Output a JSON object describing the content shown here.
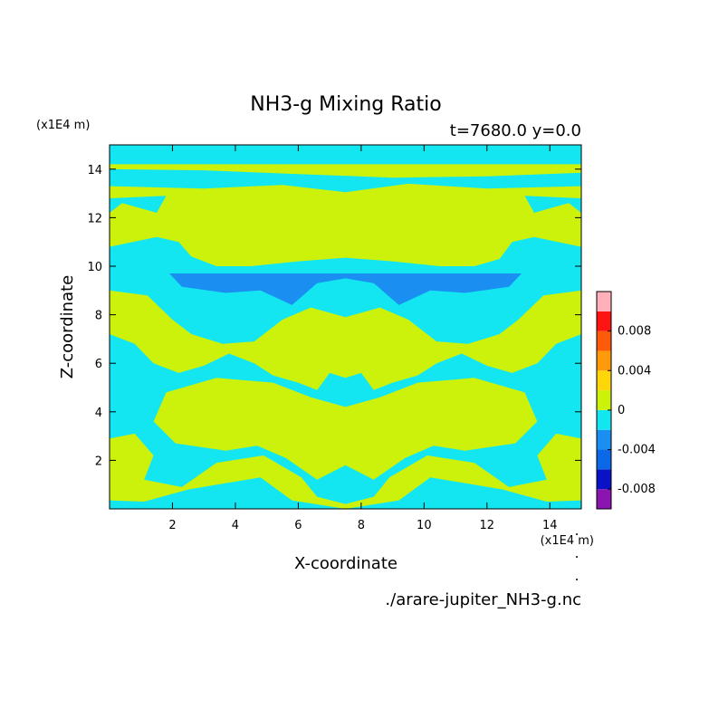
{
  "chart_data": {
    "type": "heatmap",
    "title": "NH3-g Mixing Ratio",
    "subtitle": "t=7680.0 y=0.0",
    "xlabel": "X-coordinate",
    "ylabel": "Z-coordinate",
    "x_unit": "(x1E4 m)",
    "y_unit": "(x1E4 m)",
    "xlim": [
      0,
      15
    ],
    "ylim": [
      0,
      15
    ],
    "x_ticks": [
      2,
      4,
      6,
      8,
      10,
      12,
      14
    ],
    "y_ticks": [
      2,
      4,
      6,
      8,
      10,
      12,
      14
    ],
    "x_tick_labels": [
      "2",
      "4",
      "6",
      "8",
      "10",
      "12",
      "14"
    ],
    "y_tick_labels": [
      "2",
      "4",
      "6",
      "8",
      "10",
      "12",
      "14"
    ],
    "source_file": "./arare-jupiter_NH3-g.nc",
    "colorbar": {
      "tick_labels": [
        "0.008",
        "0.004",
        "0",
        "-0.004",
        "-0.008"
      ],
      "tick_values": [
        0.008,
        0.004,
        0,
        -0.004,
        -0.008
      ],
      "levels": [
        {
          "min": -0.01,
          "max": -0.008,
          "color": "#8a15b0"
        },
        {
          "min": -0.008,
          "max": -0.006,
          "color": "#0a12c8"
        },
        {
          "min": -0.006,
          "max": -0.004,
          "color": "#0b68e6"
        },
        {
          "min": -0.004,
          "max": -0.002,
          "color": "#1b8ef2"
        },
        {
          "min": -0.002,
          "max": 0.0,
          "color": "#13e6f0"
        },
        {
          "min": 0.0,
          "max": 0.002,
          "color": "#ccf20c"
        },
        {
          "min": 0.002,
          "max": 0.004,
          "color": "#ffd60a"
        },
        {
          "min": 0.004,
          "max": 0.006,
          "color": "#ff9a0a"
        },
        {
          "min": 0.006,
          "max": 0.008,
          "color": "#ff5a0a"
        },
        {
          "min": 0.008,
          "max": 0.01,
          "color": "#ff1414"
        },
        {
          "min": 0.01,
          "max": 0.012,
          "color": "#ffb0b8"
        }
      ]
    },
    "field_regions": [
      {
        "level": -0.001,
        "polygon": [
          [
            0,
            0
          ],
          [
            15,
            0
          ],
          [
            15,
            15
          ],
          [
            0,
            15
          ]
        ]
      },
      {
        "level": 0.001,
        "polygon": [
          [
            0,
            14.2
          ],
          [
            15,
            14.2
          ],
          [
            15,
            13.85
          ],
          [
            12,
            13.7
          ],
          [
            9,
            13.65
          ],
          [
            6,
            13.8
          ],
          [
            3,
            13.95
          ],
          [
            0,
            14.0
          ]
        ]
      },
      {
        "level": 0.001,
        "polygon": [
          [
            0,
            13.3
          ],
          [
            3,
            13.2
          ],
          [
            5.5,
            13.35
          ],
          [
            7.5,
            13.05
          ],
          [
            9.5,
            13.4
          ],
          [
            12,
            13.2
          ],
          [
            15,
            13.3
          ],
          [
            15,
            12.8
          ],
          [
            13.2,
            12.9
          ],
          [
            13.5,
            12.2
          ],
          [
            14.6,
            12.6
          ],
          [
            15,
            12.2
          ],
          [
            15,
            10.8
          ],
          [
            13.5,
            11.2
          ],
          [
            12.8,
            11.0
          ],
          [
            12.4,
            10.3
          ],
          [
            11.6,
            10.0
          ],
          [
            10.5,
            10.0
          ],
          [
            9,
            10.2
          ],
          [
            7.5,
            10.35
          ],
          [
            6,
            10.2
          ],
          [
            4.5,
            10.0
          ],
          [
            3.4,
            10.0
          ],
          [
            2.6,
            10.4
          ],
          [
            2.2,
            11.0
          ],
          [
            1.5,
            11.2
          ],
          [
            0,
            10.8
          ],
          [
            0,
            12.2
          ],
          [
            0.4,
            12.6
          ],
          [
            1.5,
            12.2
          ],
          [
            1.8,
            12.9
          ],
          [
            0,
            12.8
          ]
        ]
      },
      {
        "level": -0.003,
        "polygon": [
          [
            1.9,
            9.7
          ],
          [
            13.1,
            9.7
          ],
          [
            12.7,
            9.15
          ],
          [
            11.3,
            8.9
          ],
          [
            10.2,
            9.0
          ],
          [
            9.2,
            8.4
          ],
          [
            8.4,
            9.3
          ],
          [
            7.5,
            9.5
          ],
          [
            6.6,
            9.3
          ],
          [
            5.8,
            8.4
          ],
          [
            4.8,
            9.0
          ],
          [
            3.7,
            8.9
          ],
          [
            2.3,
            9.15
          ]
        ]
      },
      {
        "level": 0.001,
        "polygon": [
          [
            0,
            9.0
          ],
          [
            1.2,
            8.8
          ],
          [
            2.0,
            7.8
          ],
          [
            2.6,
            7.2
          ],
          [
            3.6,
            6.8
          ],
          [
            4.6,
            6.9
          ],
          [
            5.5,
            7.8
          ],
          [
            6.4,
            8.3
          ],
          [
            7.5,
            7.9
          ],
          [
            8.6,
            8.3
          ],
          [
            9.5,
            7.8
          ],
          [
            10.4,
            6.9
          ],
          [
            11.4,
            6.8
          ],
          [
            12.4,
            7.2
          ],
          [
            13.0,
            7.8
          ],
          [
            13.8,
            8.8
          ],
          [
            15,
            9.0
          ],
          [
            15,
            7.2
          ],
          [
            14.2,
            6.8
          ],
          [
            13.6,
            6.0
          ],
          [
            12.8,
            5.6
          ],
          [
            12.0,
            5.9
          ],
          [
            11.2,
            6.4
          ],
          [
            10.4,
            6.0
          ],
          [
            9.8,
            5.5
          ],
          [
            9.0,
            5.2
          ],
          [
            8.4,
            4.9
          ],
          [
            8.0,
            5.6
          ],
          [
            7.5,
            5.4
          ],
          [
            7.0,
            5.6
          ],
          [
            6.6,
            4.9
          ],
          [
            6.0,
            5.2
          ],
          [
            5.2,
            5.5
          ],
          [
            4.6,
            6.0
          ],
          [
            3.8,
            6.4
          ],
          [
            3.0,
            5.9
          ],
          [
            2.2,
            5.6
          ],
          [
            1.4,
            6.0
          ],
          [
            0.8,
            6.8
          ],
          [
            0,
            7.2
          ]
        ]
      },
      {
        "level": 0.001,
        "polygon": [
          [
            1.8,
            4.8
          ],
          [
            3.4,
            5.4
          ],
          [
            5.2,
            5.2
          ],
          [
            6.4,
            4.6
          ],
          [
            7.5,
            4.2
          ],
          [
            8.6,
            4.6
          ],
          [
            9.8,
            5.2
          ],
          [
            11.6,
            5.4
          ],
          [
            13.2,
            4.8
          ],
          [
            13.6,
            3.6
          ],
          [
            12.9,
            2.7
          ],
          [
            11.3,
            2.4
          ],
          [
            10.3,
            2.6
          ],
          [
            9.4,
            2.1
          ],
          [
            8.4,
            1.2
          ],
          [
            7.5,
            1.8
          ],
          [
            6.6,
            1.2
          ],
          [
            5.6,
            2.1
          ],
          [
            4.7,
            2.6
          ],
          [
            3.7,
            2.4
          ],
          [
            2.1,
            2.7
          ],
          [
            1.4,
            3.6
          ]
        ]
      },
      {
        "level": 0.001,
        "polygon": [
          [
            0,
            2.9
          ],
          [
            0.8,
            3.1
          ],
          [
            1.4,
            2.2
          ],
          [
            1.1,
            1.2
          ],
          [
            2.3,
            0.9
          ],
          [
            3.4,
            1.9
          ],
          [
            4.9,
            2.2
          ],
          [
            6.1,
            1.3
          ],
          [
            6.6,
            0.5
          ],
          [
            7.5,
            0.2
          ],
          [
            8.4,
            0.5
          ],
          [
            8.9,
            1.3
          ],
          [
            10.1,
            2.2
          ],
          [
            11.6,
            1.9
          ],
          [
            12.7,
            0.9
          ],
          [
            13.9,
            1.2
          ],
          [
            13.6,
            2.2
          ],
          [
            14.2,
            3.1
          ],
          [
            15,
            2.9
          ],
          [
            15,
            0.35
          ],
          [
            13.9,
            0.3
          ],
          [
            12.5,
            0.8
          ],
          [
            10.2,
            1.3
          ],
          [
            9.2,
            0.35
          ],
          [
            7.5,
            0
          ],
          [
            5.8,
            0.35
          ],
          [
            4.8,
            1.3
          ],
          [
            2.5,
            0.8
          ],
          [
            1.1,
            0.3
          ],
          [
            0,
            0.35
          ]
        ]
      }
    ]
  }
}
